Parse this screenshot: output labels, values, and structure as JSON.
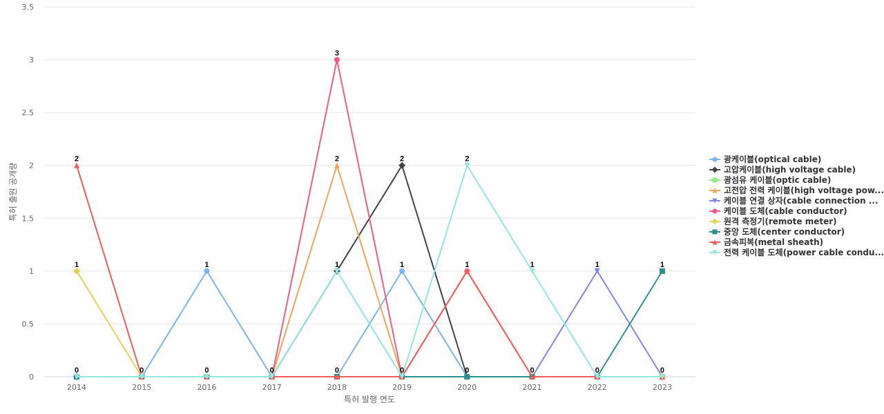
{
  "chart_data": {
    "type": "line",
    "title": "",
    "xlabel": "특허 발행 연도",
    "ylabel": "특허 출원 공개량",
    "categories": [
      "2014",
      "2015",
      "2016",
      "2017",
      "2018",
      "2019",
      "2020",
      "2021",
      "2022",
      "2023"
    ],
    "ylim": [
      0,
      3.5
    ],
    "yticks": [
      "0",
      "0.5",
      "1",
      "1.5",
      "2",
      "2.5",
      "3",
      "3.5"
    ],
    "grid": true,
    "legend_position": "right",
    "series": [
      {
        "name": "광케이블(optical cable)",
        "color": "#7cb5ec",
        "marker": "circle",
        "values": [
          0,
          0,
          1,
          0,
          0,
          1,
          0,
          0,
          0,
          0
        ]
      },
      {
        "name": "고압케이블(high voltage cable)",
        "color": "#434348",
        "marker": "diamond",
        "values": [
          0,
          0,
          0,
          0,
          1,
          2,
          0,
          0,
          0,
          0
        ]
      },
      {
        "name": "광섬유 케이블(optic cable)",
        "color": "#90ed7d",
        "marker": "square",
        "values": [
          0,
          0,
          0,
          0,
          0,
          0,
          0,
          0,
          0,
          0
        ]
      },
      {
        "name": "고전압 전력 케이블(high voltage pow...",
        "color": "#f7a35c",
        "marker": "triangle",
        "values": [
          0,
          0,
          0,
          0,
          2,
          0,
          0,
          0,
          0,
          0
        ]
      },
      {
        "name": "케이블 연결 상자(cable connection ...",
        "color": "#8085e9",
        "marker": "triangle-down",
        "values": [
          0,
          0,
          0,
          0,
          0,
          0,
          0,
          0,
          1,
          0
        ]
      },
      {
        "name": "케이블 도체(cable conductor)",
        "color": "#f15c80",
        "marker": "circle",
        "values": [
          0,
          0,
          0,
          0,
          3,
          0,
          1,
          0,
          0,
          0
        ]
      },
      {
        "name": "원격 측정기(remote meter)",
        "color": "#e4d354",
        "marker": "diamond",
        "values": [
          1,
          0,
          0,
          0,
          0,
          0,
          0,
          0,
          0,
          0
        ]
      },
      {
        "name": "중앙 도체(center conductor)",
        "color": "#2b908f",
        "marker": "square",
        "values": [
          0,
          0,
          0,
          0,
          0,
          0,
          0,
          0,
          0,
          1
        ]
      },
      {
        "name": "금속피복(metal sheath)",
        "color": "#f45b5b",
        "marker": "triangle",
        "values": [
          2,
          0,
          0,
          0,
          0,
          0,
          1,
          0,
          0,
          0
        ]
      },
      {
        "name": "전력 케이블 도체(power cable condu...",
        "color": "#91e8e1",
        "marker": "triangle-down",
        "values": [
          0,
          0,
          0,
          0,
          1,
          0,
          2,
          1,
          0,
          0
        ]
      }
    ],
    "data_labels": [
      {
        "category": "2014",
        "values": [
          "2",
          "1",
          "0"
        ]
      },
      {
        "category": "2015",
        "values": [
          "0"
        ]
      },
      {
        "category": "2016",
        "values": [
          "1",
          "0"
        ]
      },
      {
        "category": "2017",
        "values": [
          "0"
        ]
      },
      {
        "category": "2018",
        "values": [
          "3",
          "2",
          "1",
          "0"
        ]
      },
      {
        "category": "2019",
        "values": [
          "2",
          "1",
          "0"
        ]
      },
      {
        "category": "2020",
        "values": [
          "2",
          "1",
          "0"
        ]
      },
      {
        "category": "2021",
        "values": [
          "1",
          "0"
        ]
      },
      {
        "category": "2022",
        "values": [
          "1",
          "0"
        ]
      },
      {
        "category": "2023",
        "values": [
          "1",
          "0"
        ]
      }
    ]
  }
}
